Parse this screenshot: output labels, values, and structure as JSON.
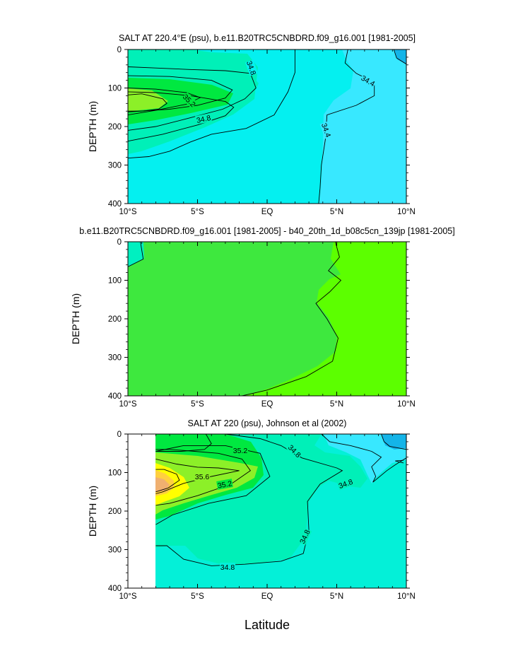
{
  "figure": {
    "xlabel": "Latitude"
  },
  "colors": {
    "sal_34_0": "#14b4e8",
    "sal_34_4": "#0ad2f2",
    "sal_34_6": "#38e8ff",
    "sal_34_8": "#04f0f0",
    "sal_35_0": "#00f0b8",
    "sal_35_2": "#00e840",
    "sal_35_4": "#8cf028",
    "sal_35_6": "#ffff00",
    "sal_35_8": "#ffcf40",
    "sal_36_0": "#f0b070",
    "diff_neg": "#3ee83e",
    "diff_pos": "#5cff00",
    "diff_edge": "#00f0c0"
  },
  "chart_data": [
    {
      "type": "contour",
      "title": "SALT AT 220.4°E (psu), b.e11.B20TRC5CNBDRD.f09_g16.001 [1981-2005]",
      "ylabel": "DEPTH (m)",
      "x_ticks": [
        "10°S",
        "5°S",
        "EQ",
        "5°N",
        "10°N"
      ],
      "x_range": [
        -10,
        10
      ],
      "y_ticks": [
        "0",
        "100",
        "200",
        "300",
        "400"
      ],
      "y_range": [
        0,
        400
      ],
      "y_reversed": true,
      "contour_labels": [
        "34.8",
        "35.2",
        "34.8",
        "34.4",
        "34.4"
      ],
      "contours": [
        {
          "level": 34.8,
          "points": [
            [
              -10,
              45
            ],
            [
              -8,
              48
            ],
            [
              -5.6,
              52
            ],
            [
              -3,
              55
            ],
            [
              -1.2,
              62
            ],
            [
              -0.8,
              100
            ],
            [
              -1.6,
              128
            ],
            [
              -3.2,
              155
            ],
            [
              -5.8,
              180
            ],
            [
              -8,
              200
            ],
            [
              -10,
              210
            ]
          ]
        },
        {
          "level": 34.8,
          "points": [
            [
              -10,
              282
            ],
            [
              -8.5,
              278
            ],
            [
              -7,
              264
            ],
            [
              -5.5,
              240
            ],
            [
              -4,
              220
            ],
            [
              -1.5,
              205
            ],
            [
              0.5,
              170
            ],
            [
              1.5,
              110
            ],
            [
              2,
              60
            ],
            [
              2,
              0
            ]
          ]
        },
        {
          "level": 35.0,
          "points": [
            [
              -10,
              68
            ],
            [
              -7,
              70
            ],
            [
              -4,
              80
            ],
            [
              -2.5,
              105
            ],
            [
              -3,
              126
            ],
            [
              -5,
              145
            ],
            [
              -7,
              155
            ],
            [
              -10,
              162
            ]
          ]
        },
        {
          "level": 35.0,
          "points": [
            [
              -10,
              238
            ],
            [
              -7.5,
              220
            ],
            [
              -5,
              196
            ],
            [
              -3,
              172
            ],
            [
              -2.4,
              150
            ],
            [
              -3,
              135
            ],
            [
              -5.5,
              120
            ],
            [
              -8,
              112
            ],
            [
              -10,
              110
            ]
          ]
        },
        {
          "level": 35.2,
          "points": [
            [
              -10,
              100
            ],
            [
              -8,
              103
            ],
            [
              -5.8,
              112
            ],
            [
              -4.8,
              125
            ],
            [
              -5.8,
              142
            ],
            [
              -8,
              158
            ],
            [
              -10,
              170
            ]
          ]
        },
        {
          "level": 35.2,
          "points": [
            [
              -10,
              118
            ],
            [
              -9,
              115
            ],
            [
              -7.5,
              128
            ],
            [
              -7.2,
              140
            ],
            [
              -7.8,
              155
            ],
            [
              -9,
              160
            ],
            [
              -10,
              160
            ]
          ]
        },
        {
          "level": 34.4,
          "points": [
            [
              5.8,
              0
            ],
            [
              5.6,
              35
            ],
            [
              6.4,
              62
            ],
            [
              7.7,
              85
            ],
            [
              7.7,
              120
            ],
            [
              6.4,
              145
            ],
            [
              4.3,
              170
            ],
            [
              4.2,
              230
            ],
            [
              3.9,
              300
            ],
            [
              3.8,
              360
            ],
            [
              3.7,
              400
            ]
          ]
        },
        {
          "level": 34.2,
          "points": [
            [
              9.1,
              0
            ],
            [
              9.3,
              22
            ],
            [
              10,
              38
            ]
          ]
        }
      ],
      "fills": {
        "background": "34.6",
        "south_band": "35.0",
        "core_bands": [
          "35.2",
          "35.4"
        ]
      }
    },
    {
      "type": "contour",
      "title": "b.e11.B20TRC5CNBDRD.f09_g16.001 [1981-2005] - b40_20th_1d_b08c5cn_139jp [1981-2005]",
      "ylabel": "DEPTH (m)",
      "x_ticks": [
        "10°S",
        "5°S",
        "EQ",
        "5°N",
        "10°N"
      ],
      "x_range": [
        -10,
        10
      ],
      "y_ticks": [
        "0",
        "100",
        "200",
        "300",
        "400"
      ],
      "y_range": [
        0,
        400
      ],
      "y_reversed": true,
      "contour_labels": [],
      "contours": [
        {
          "level": 0.0,
          "points": [
            [
              4.9,
              0
            ],
            [
              5.2,
              40
            ],
            [
              4.4,
              75
            ],
            [
              5.3,
              100
            ],
            [
              4.5,
              130
            ],
            [
              3.5,
              160
            ],
            [
              4.3,
              200
            ],
            [
              5.1,
              250
            ],
            [
              4.7,
              310
            ],
            [
              2.8,
              350
            ],
            [
              0,
              385
            ],
            [
              -1.8,
              400
            ]
          ]
        },
        {
          "level": -0.1,
          "points": [
            [
              -9.1,
              0
            ],
            [
              -8.9,
              45
            ],
            [
              -10,
              65
            ]
          ]
        }
      ]
    },
    {
      "type": "contour",
      "title": "SALT AT 220 (psu), Johnson et al (2002)",
      "ylabel": "DEPTH (m)",
      "x_ticks": [
        "10°S",
        "5°S",
        "EQ",
        "5°N",
        "10°N"
      ],
      "x_range": [
        -10,
        10
      ],
      "y_ticks": [
        "0",
        "100",
        "200",
        "300",
        "400"
      ],
      "y_range": [
        0,
        400
      ],
      "y_reversed": true,
      "data_start_lat": -8,
      "contour_labels": [
        "35.2",
        "34.8",
        "35.6",
        "35.2",
        "34.8",
        "34.8",
        "34.8"
      ],
      "contours": [
        {
          "level": 34.8,
          "points": [
            [
              -8,
              45
            ],
            [
              -6.2,
              45
            ],
            [
              -4.5,
              40
            ],
            [
              -4,
              25
            ],
            [
              -4.4,
              0
            ]
          ]
        },
        {
          "level": 35.4,
          "points": [
            [
              -8,
              40
            ],
            [
              -7,
              40
            ],
            [
              -5.2,
              45
            ],
            [
              -3.5,
              50
            ],
            [
              -1.8,
              65
            ],
            [
              -1.2,
              95
            ],
            [
              -2.6,
              130
            ],
            [
              -5,
              160
            ],
            [
              -7,
              180
            ],
            [
              -8,
              185
            ]
          ]
        },
        {
          "level": 35.6,
          "points": [
            [
              -8,
              65
            ],
            [
              -6.5,
              78
            ],
            [
              -5,
              86
            ],
            [
              -3.5,
              88
            ],
            [
              -2,
              95
            ],
            [
              -4,
              110
            ],
            [
              -6,
              128
            ],
            [
              -7.5,
              150
            ],
            [
              -8,
              155
            ]
          ]
        },
        {
          "level": 35.8,
          "points": [
            [
              -8,
              92
            ],
            [
              -7.4,
              92
            ],
            [
              -6.5,
              104
            ],
            [
              -6.3,
              120
            ],
            [
              -7.1,
              140
            ],
            [
              -8,
              150
            ]
          ]
        },
        {
          "level": 35.2,
          "points": [
            [
              -8,
              45
            ],
            [
              -6,
              30
            ],
            [
              -3,
              30
            ],
            [
              -0.5,
              50
            ],
            [
              0.2,
              110
            ],
            [
              -1.5,
              160
            ],
            [
              -4.2,
              180
            ],
            [
              -6.8,
              210
            ],
            [
              -8,
              235
            ]
          ]
        },
        {
          "level": 35.0,
          "points": [
            [
              -6.4,
              0
            ],
            [
              -3,
              0
            ],
            [
              -0.5,
              12
            ],
            [
              1,
              30
            ],
            [
              2.5,
              62
            ],
            [
              5,
              88
            ],
            [
              5.4,
              95
            ],
            [
              3.8,
              130
            ],
            [
              2.9,
              175
            ],
            [
              3,
              250
            ],
            [
              2.6,
              310
            ],
            [
              1,
              330
            ],
            [
              -1.6,
              338
            ],
            [
              -4,
              342
            ],
            [
              -6,
              325
            ],
            [
              -7.2,
              290
            ],
            [
              -8,
              290
            ]
          ]
        },
        {
          "level": 34.6,
          "points": [
            [
              3.9,
              0
            ],
            [
              4.5,
              20
            ],
            [
              6,
              30
            ],
            [
              7.5,
              45
            ],
            [
              8.2,
              60
            ],
            [
              7.5,
              85
            ],
            [
              7.8,
              110
            ],
            [
              7.6,
              125
            ],
            [
              8.6,
              95
            ],
            [
              9.2,
              80
            ],
            [
              10,
              62
            ]
          ]
        },
        {
          "level": 34.4,
          "points": [
            [
              8.2,
              0
            ],
            [
              8.4,
              20
            ],
            [
              8.8,
              32
            ],
            [
              10,
              40
            ]
          ]
        },
        {
          "level": 34.6,
          "points": [
            [
              9.8,
              68
            ],
            [
              9.2,
              70
            ],
            [
              9.8,
              75
            ]
          ]
        }
      ]
    }
  ]
}
